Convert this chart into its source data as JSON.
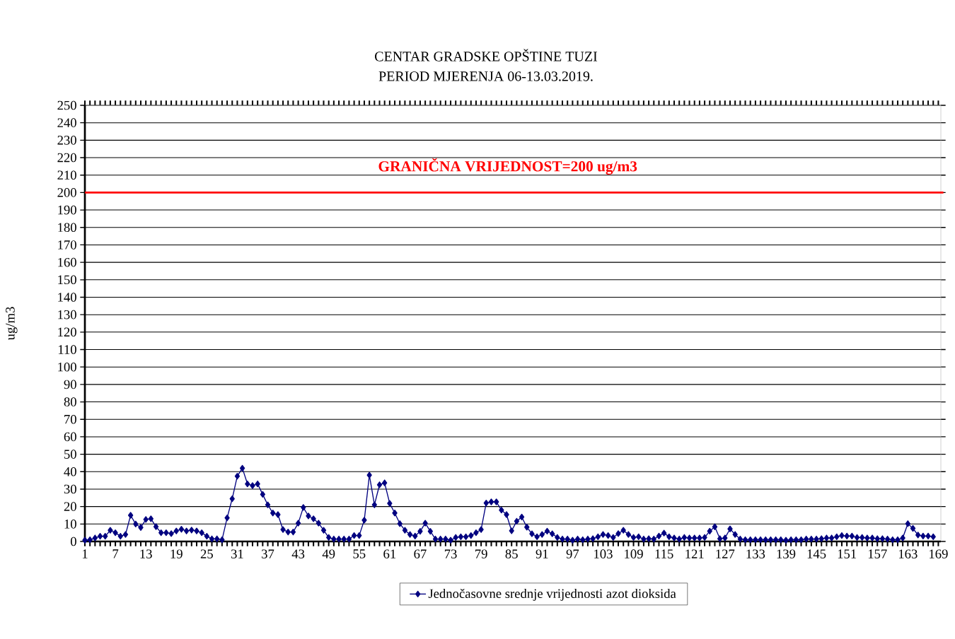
{
  "chart_data": {
    "type": "line",
    "title": "CENTAR GRADSKE OPŠTINE TUZI",
    "subtitle": "PERIOD MJERENJA 06-13.03.2019.",
    "ylabel": "ug/m3",
    "categories": [
      "1",
      null,
      null,
      null,
      null,
      null,
      "7",
      null,
      null,
      null,
      null,
      null,
      "13",
      null,
      null,
      null,
      null,
      null,
      "19",
      null,
      null,
      null,
      null,
      null,
      "25",
      null,
      null,
      null,
      null,
      null,
      "31",
      null,
      null,
      null,
      null,
      null,
      "37",
      null,
      null,
      null,
      null,
      null,
      "43",
      null,
      null,
      null,
      null,
      null,
      "49",
      null,
      null,
      null,
      null,
      null,
      "55",
      null,
      null,
      null,
      null,
      null,
      "61",
      null,
      null,
      null,
      null,
      null,
      "67",
      null,
      null,
      null,
      null,
      null,
      "73",
      null,
      null,
      null,
      null,
      null,
      "79",
      null,
      null,
      null,
      null,
      null,
      "85",
      null,
      null,
      null,
      null,
      null,
      "91",
      null,
      null,
      null,
      null,
      null,
      "97",
      null,
      null,
      null,
      null,
      null,
      "103",
      null,
      null,
      null,
      null,
      null,
      "109",
      null,
      null,
      null,
      null,
      null,
      "115",
      null,
      null,
      null,
      null,
      null,
      "121",
      null,
      null,
      null,
      null,
      null,
      "127",
      null,
      null,
      null,
      null,
      null,
      "133",
      null,
      null,
      null,
      null,
      null,
      "139",
      null,
      null,
      null,
      null,
      null,
      "145",
      null,
      null,
      null,
      null,
      null,
      "151",
      null,
      null,
      null,
      null,
      null,
      "157",
      null,
      null,
      null,
      null,
      null,
      "163",
      null,
      null,
      null,
      null,
      null,
      "169"
    ],
    "series": [
      {
        "name": "Jednočasovne srednje vrijednosti azot dioksida",
        "color": "#000080",
        "values": [
          0.7,
          1,
          2,
          3,
          3,
          6.4,
          5,
          3,
          4,
          15,
          10,
          8,
          12.6,
          13,
          8.5,
          5,
          5,
          4.5,
          6,
          7,
          6,
          6.5,
          6,
          5,
          3,
          1.5,
          1.5,
          1,
          13.5,
          24.5,
          37.4,
          42,
          33,
          32,
          33,
          27,
          21,
          16.3,
          15.4,
          6.8,
          5.4,
          5.4,
          10.5,
          19.5,
          14.6,
          13,
          10.5,
          6.4,
          2.3,
          1.4,
          1.4,
          1.4,
          1.4,
          3.4,
          3.4,
          12.2,
          38,
          21,
          32.5,
          33.6,
          21.8,
          16.3,
          10.2,
          6.4,
          4,
          3.1,
          5.8,
          10.5,
          5.8,
          1.4,
          1.4,
          1.4,
          0.7,
          2.3,
          2.7,
          2.7,
          3.4,
          5,
          6.8,
          22,
          22.7,
          22.7,
          18,
          15.4,
          6.1,
          11.6,
          14,
          8.2,
          4.4,
          2.7,
          4,
          5.9,
          4.4,
          2.3,
          1.4,
          1.4,
          0.7,
          1.4,
          1,
          1.4,
          1.6,
          2.7,
          4,
          3.4,
          2.3,
          4.5,
          6.4,
          4,
          2.3,
          2.7,
          1.4,
          1.6,
          1.4,
          3.1,
          4.8,
          2.7,
          2,
          1.4,
          2.3,
          2,
          2,
          2,
          2.3,
          5.9,
          8.4,
          1.6,
          2,
          7.2,
          4,
          1.4,
          1,
          1,
          1,
          1,
          1,
          1,
          1,
          1,
          0.7,
          1,
          1,
          1,
          1.4,
          1.4,
          1.4,
          1.6,
          2,
          2,
          2.7,
          3.4,
          3.1,
          3.1,
          2.3,
          2.3,
          2,
          2,
          1.6,
          1.6,
          1.4,
          1,
          1,
          2,
          10.2,
          7.5,
          3.7,
          3.1,
          3.1,
          2.7,
          null
        ]
      }
    ],
    "ylim": [
      0,
      250
    ],
    "yticks": [
      0,
      10,
      20,
      30,
      40,
      50,
      60,
      70,
      80,
      90,
      100,
      110,
      120,
      130,
      140,
      150,
      160,
      170,
      180,
      190,
      200,
      210,
      220,
      230,
      240,
      250
    ],
    "grid": "y",
    "legend": "bottom",
    "marker": "diamond",
    "line_style": "solid",
    "ref_lines": [
      {
        "axis": "y",
        "value": 200,
        "label": "GRANIČNA VRIJEDNOST=200 ug/m3",
        "color": "#ff0000"
      }
    ]
  }
}
